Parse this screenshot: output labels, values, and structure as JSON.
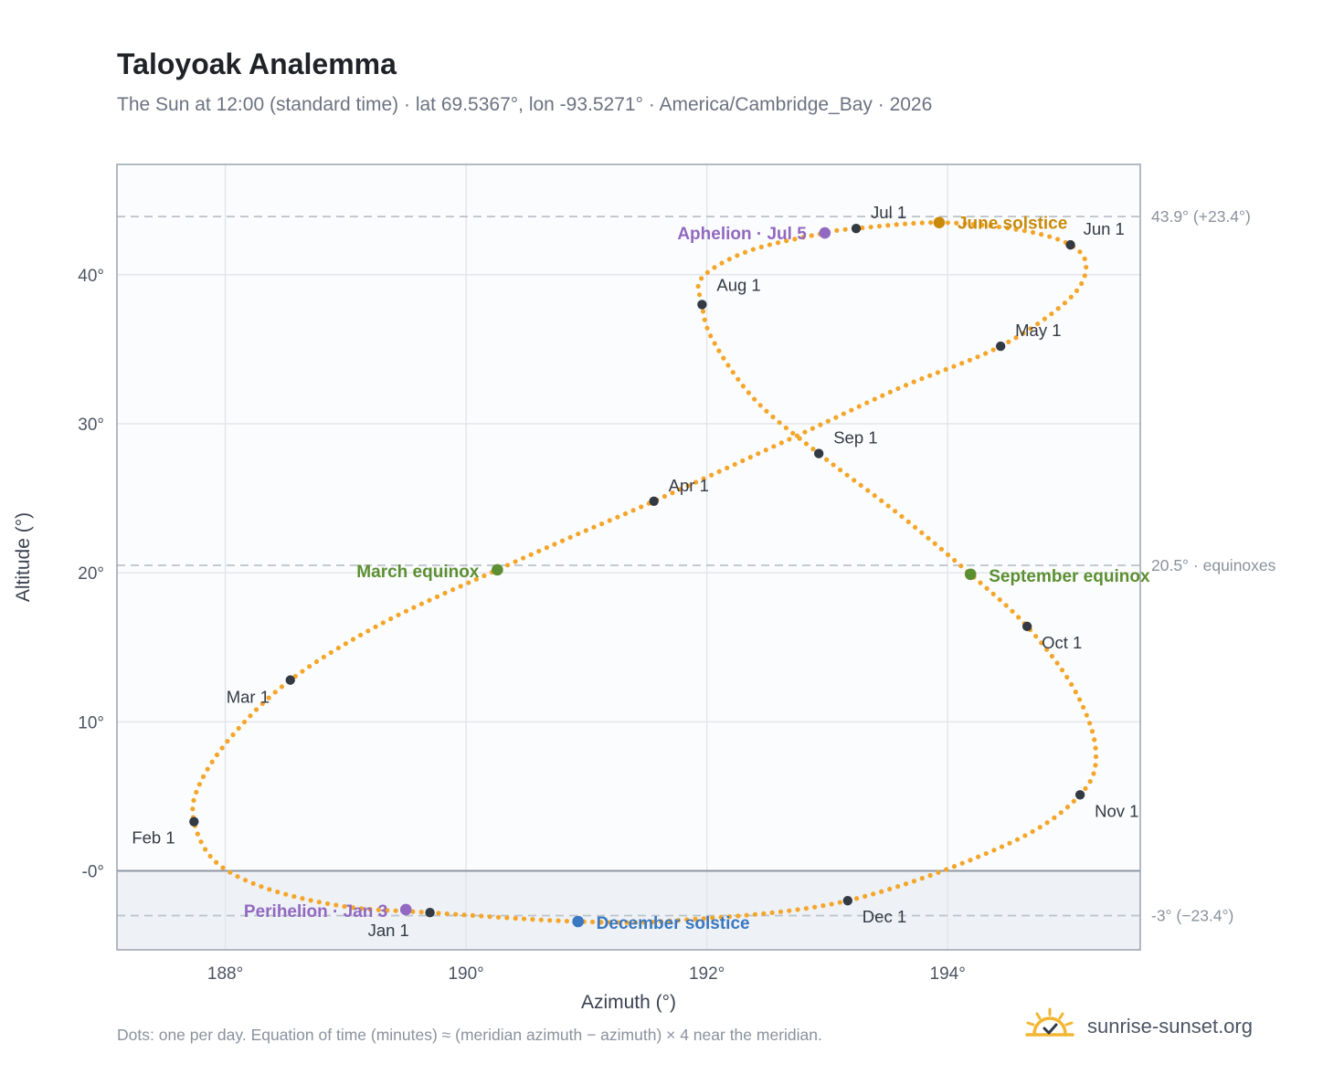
{
  "title": "Taloyoak Analemma",
  "subtitle": "The Sun at 12:00 (standard time) · lat 69.5367°, lon -93.5271° · America/Cambridge_Bay · 2026",
  "footer": "Dots: one per day. Equation of time (minutes) ≈ (meridian azimuth − azimuth) × 4 near the meridian.",
  "brand": {
    "name": "sunrise-sunset.org",
    "icon": "sun-check-icon"
  },
  "colors": {
    "curve": "#f4a62a",
    "month": "#333a44",
    "equinox": "#5b8f32",
    "june": "#c98a0a",
    "december": "#3a78c2",
    "apsis": "#9169c0",
    "grid": "#e3e6ea",
    "refline": "#bcc2ca",
    "below": "#eef1f5",
    "plotbg": "#fbfcfd"
  },
  "chart_data": {
    "type": "scatter",
    "title": "Taloyoak Analemma",
    "xlabel": "Azimuth (°)",
    "ylabel": "Altitude (°)",
    "xlim": [
      187.1,
      195.6
    ],
    "ylim": [
      -5.3,
      47.4
    ],
    "xticks": [
      {
        "value": 188,
        "label": "188°"
      },
      {
        "value": 190,
        "label": "190°"
      },
      {
        "value": 192,
        "label": "192°"
      },
      {
        "value": 194,
        "label": "194°"
      }
    ],
    "yticks": [
      {
        "value": 0,
        "label": "-0°"
      },
      {
        "value": 10,
        "label": "10°"
      },
      {
        "value": 20,
        "label": "20°"
      },
      {
        "value": 30,
        "label": "30°"
      },
      {
        "value": 40,
        "label": "40°"
      }
    ],
    "grid": true,
    "horizon_altitude": 0,
    "reference_lines": [
      {
        "value": 43.9,
        "label": "43.9° (+23.4°)"
      },
      {
        "value": 20.5,
        "label": "20.5° · equinoxes"
      },
      {
        "value": -3,
        "label": "-3° (−23.4°)"
      }
    ],
    "month_points": [
      {
        "label": "Jan 1",
        "x": 189.7,
        "y": -2.8
      },
      {
        "label": "Feb 1",
        "x": 187.74,
        "y": 3.3
      },
      {
        "label": "Mar 1",
        "x": 188.54,
        "y": 12.8
      },
      {
        "label": "Apr 1",
        "x": 191.56,
        "y": 24.8
      },
      {
        "label": "May 1",
        "x": 194.44,
        "y": 35.2
      },
      {
        "label": "Jun 1",
        "x": 195.02,
        "y": 42.0
      },
      {
        "label": "Jul 1",
        "x": 193.24,
        "y": 43.1
      },
      {
        "label": "Aug 1",
        "x": 191.96,
        "y": 38.0
      },
      {
        "label": "Sep 1",
        "x": 192.93,
        "y": 28.0
      },
      {
        "label": "Oct 1",
        "x": 194.66,
        "y": 16.4
      },
      {
        "label": "Nov 1",
        "x": 195.1,
        "y": 5.1
      },
      {
        "label": "Dec 1",
        "x": 193.17,
        "y": -2.0
      }
    ],
    "events": [
      {
        "label": "June solstice",
        "x": 193.93,
        "y": 43.5,
        "color": "june"
      },
      {
        "label": "December solstice",
        "x": 190.93,
        "y": -3.4,
        "color": "december"
      },
      {
        "label": "March equinox",
        "x": 190.26,
        "y": 20.2,
        "color": "equinox"
      },
      {
        "label": "September equinox",
        "x": 194.19,
        "y": 19.9,
        "color": "equinox"
      },
      {
        "label": "Aphelion · Jul 5",
        "x": 192.98,
        "y": 42.8,
        "color": "apsis"
      },
      {
        "label": "Perihelion · Jan 3",
        "x": 189.5,
        "y": -2.6,
        "color": "apsis"
      }
    ],
    "curve_waypoints": [
      {
        "x": 189.7,
        "y": -2.8
      },
      {
        "x": 189.0,
        "y": -2.4
      },
      {
        "x": 188.35,
        "y": -1.2
      },
      {
        "x": 187.92,
        "y": 0.6
      },
      {
        "x": 187.74,
        "y": 3.3
      },
      {
        "x": 187.78,
        "y": 5.7
      },
      {
        "x": 188.05,
        "y": 9.0
      },
      {
        "x": 188.54,
        "y": 12.8
      },
      {
        "x": 189.3,
        "y": 16.6
      },
      {
        "x": 190.26,
        "y": 20.2
      },
      {
        "x": 190.9,
        "y": 22.5
      },
      {
        "x": 191.56,
        "y": 24.8
      },
      {
        "x": 192.75,
        "y": 29.2
      },
      {
        "x": 193.6,
        "y": 32.4
      },
      {
        "x": 194.44,
        "y": 35.2
      },
      {
        "x": 195.0,
        "y": 38.3
      },
      {
        "x": 195.15,
        "y": 40.5
      },
      {
        "x": 195.02,
        "y": 42.0
      },
      {
        "x": 194.6,
        "y": 43.0
      },
      {
        "x": 193.93,
        "y": 43.5
      },
      {
        "x": 193.24,
        "y": 43.1
      },
      {
        "x": 192.98,
        "y": 42.8
      },
      {
        "x": 192.35,
        "y": 41.6
      },
      {
        "x": 191.96,
        "y": 39.8
      },
      {
        "x": 191.96,
        "y": 38.0
      },
      {
        "x": 192.05,
        "y": 35.6
      },
      {
        "x": 192.4,
        "y": 31.6
      },
      {
        "x": 192.93,
        "y": 28.0
      },
      {
        "x": 193.6,
        "y": 23.9
      },
      {
        "x": 194.19,
        "y": 19.9
      },
      {
        "x": 194.66,
        "y": 16.4
      },
      {
        "x": 195.05,
        "y": 12.2
      },
      {
        "x": 195.23,
        "y": 8.1
      },
      {
        "x": 195.1,
        "y": 5.1
      },
      {
        "x": 194.5,
        "y": 1.8
      },
      {
        "x": 193.17,
        "y": -2.0
      },
      {
        "x": 191.8,
        "y": -3.3
      },
      {
        "x": 190.93,
        "y": -3.4
      },
      {
        "x": 189.7,
        "y": -2.8
      }
    ]
  }
}
